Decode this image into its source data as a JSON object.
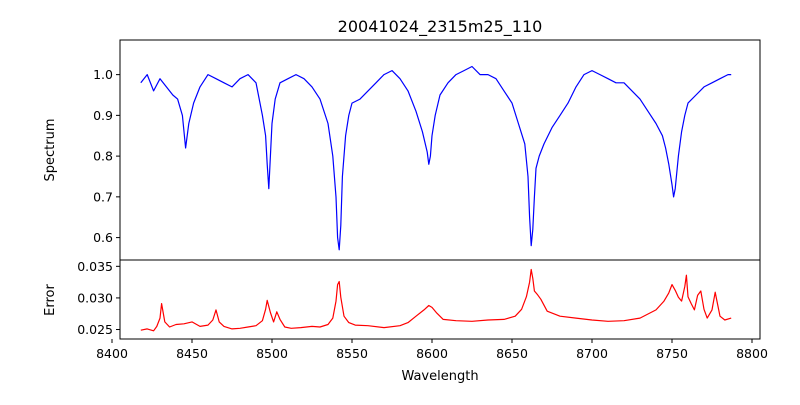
{
  "chart_data": [
    {
      "type": "line",
      "title": "20041024_2315m25_110",
      "xlabel": "",
      "ylabel": "Spectrum",
      "xlim": [
        8405,
        8805
      ],
      "ylim": [
        0.545,
        1.085
      ],
      "xticks": [
        8400,
        8450,
        8500,
        8550,
        8600,
        8650,
        8700,
        8750,
        8800
      ],
      "yticks": [
        0.6,
        0.7,
        0.8,
        0.9,
        1.0
      ],
      "ytick_labels": [
        "0.6",
        "0.7",
        "0.8",
        "0.9",
        "1.0"
      ],
      "grid": false,
      "color": "#0000ff",
      "series": [
        {
          "x": [
            8418,
            8422,
            8426,
            8430,
            8434,
            8438,
            8441,
            8444,
            8446,
            8448,
            8451,
            8455,
            8460,
            8465,
            8470,
            8475,
            8480,
            8485,
            8490,
            8494,
            8496,
            8497,
            8498,
            8499,
            8500,
            8502,
            8505,
            8510,
            8515,
            8520,
            8525,
            8530,
            8535,
            8538,
            8540,
            8541,
            8542,
            8543,
            8544,
            8546,
            8548,
            8550,
            8555,
            8560,
            8565,
            8570,
            8575,
            8580,
            8585,
            8590,
            8594,
            8597,
            8598,
            8599,
            8600,
            8602,
            8605,
            8610,
            8615,
            8620,
            8625,
            8630,
            8635,
            8640,
            8645,
            8650,
            8654,
            8658,
            8660,
            8661,
            8662,
            8663,
            8664,
            8665,
            8667,
            8670,
            8675,
            8680,
            8685,
            8690,
            8695,
            8700,
            8705,
            8710,
            8715,
            8720,
            8725,
            8730,
            8735,
            8740,
            8744,
            8746,
            8748,
            8750,
            8751,
            8752,
            8753,
            8754,
            8756,
            8758,
            8760,
            8765,
            8770,
            8775,
            8780,
            8785,
            8787
          ],
          "y": [
            0.98,
            1.0,
            0.96,
            0.99,
            0.97,
            0.95,
            0.94,
            0.9,
            0.82,
            0.88,
            0.93,
            0.97,
            1.0,
            0.99,
            0.98,
            0.97,
            0.99,
            1.0,
            0.98,
            0.9,
            0.85,
            0.78,
            0.72,
            0.8,
            0.88,
            0.94,
            0.98,
            0.99,
            1.0,
            0.99,
            0.97,
            0.94,
            0.88,
            0.8,
            0.7,
            0.6,
            0.57,
            0.63,
            0.75,
            0.85,
            0.9,
            0.93,
            0.94,
            0.96,
            0.98,
            1.0,
            1.01,
            0.99,
            0.96,
            0.91,
            0.86,
            0.81,
            0.78,
            0.8,
            0.85,
            0.9,
            0.95,
            0.98,
            1.0,
            1.01,
            1.02,
            1.0,
            1.0,
            0.99,
            0.96,
            0.93,
            0.88,
            0.83,
            0.75,
            0.65,
            0.58,
            0.62,
            0.7,
            0.77,
            0.8,
            0.83,
            0.87,
            0.9,
            0.93,
            0.97,
            1.0,
            1.01,
            1.0,
            0.99,
            0.98,
            0.98,
            0.96,
            0.94,
            0.91,
            0.88,
            0.85,
            0.82,
            0.78,
            0.73,
            0.7,
            0.72,
            0.76,
            0.8,
            0.86,
            0.9,
            0.93,
            0.95,
            0.97,
            0.98,
            0.99,
            1.0,
            1.0
          ]
        }
      ]
    },
    {
      "type": "line",
      "title": "",
      "xlabel": "Wavelength",
      "ylabel": "Error",
      "xlim": [
        8405,
        8805
      ],
      "ylim": [
        0.0235,
        0.036
      ],
      "xticks": [
        8400,
        8450,
        8500,
        8550,
        8600,
        8650,
        8700,
        8750,
        8800
      ],
      "xtick_labels": [
        "8400",
        "8450",
        "8500",
        "8550",
        "8600",
        "8650",
        "8700",
        "8750",
        "8800"
      ],
      "yticks": [
        0.025,
        0.03,
        0.035
      ],
      "ytick_labels": [
        "0.025",
        "0.030",
        "0.035"
      ],
      "grid": false,
      "color": "#ff0000",
      "series": [
        {
          "x": [
            8418,
            8422,
            8426,
            8428,
            8430,
            8431,
            8433,
            8436,
            8440,
            8445,
            8450,
            8455,
            8460,
            8463,
            8465,
            8467,
            8470,
            8475,
            8480,
            8485,
            8490,
            8494,
            8496,
            8497,
            8499,
            8501,
            8503,
            8505,
            8508,
            8512,
            8518,
            8525,
            8530,
            8535,
            8538,
            8540,
            8541,
            8542,
            8543,
            8545,
            8548,
            8552,
            8560,
            8570,
            8580,
            8585,
            8590,
            8595,
            8598,
            8600,
            8603,
            8607,
            8615,
            8625,
            8635,
            8645,
            8652,
            8656,
            8659,
            8661,
            8662,
            8663,
            8664,
            8666,
            8668,
            8672,
            8680,
            8690,
            8700,
            8710,
            8720,
            8730,
            8740,
            8745,
            8748,
            8750,
            8752,
            8754,
            8756,
            8758,
            8759,
            8760,
            8762,
            8764,
            8766,
            8768,
            8770,
            8772,
            8775,
            8777,
            8778,
            8780,
            8783,
            8787
          ],
          "y": [
            0.0249,
            0.0251,
            0.0248,
            0.0255,
            0.0268,
            0.0291,
            0.0262,
            0.0254,
            0.0258,
            0.0259,
            0.0262,
            0.0255,
            0.0257,
            0.0265,
            0.0281,
            0.0262,
            0.0255,
            0.0251,
            0.0252,
            0.0254,
            0.0256,
            0.0264,
            0.0282,
            0.0296,
            0.0277,
            0.0262,
            0.0278,
            0.0266,
            0.0254,
            0.0252,
            0.0253,
            0.0255,
            0.0254,
            0.0258,
            0.0268,
            0.0295,
            0.0321,
            0.0326,
            0.0301,
            0.0271,
            0.0261,
            0.0257,
            0.0256,
            0.0253,
            0.0256,
            0.0261,
            0.0271,
            0.0281,
            0.0288,
            0.0285,
            0.0276,
            0.0266,
            0.0264,
            0.0263,
            0.0265,
            0.0266,
            0.0271,
            0.0282,
            0.0302,
            0.0325,
            0.0345,
            0.0331,
            0.0311,
            0.0305,
            0.0298,
            0.0279,
            0.0271,
            0.0268,
            0.0265,
            0.0263,
            0.0264,
            0.0268,
            0.0281,
            0.0295,
            0.0308,
            0.0321,
            0.0312,
            0.0301,
            0.0295,
            0.0318,
            0.0336,
            0.0302,
            0.0291,
            0.0281,
            0.0304,
            0.0311,
            0.0282,
            0.0268,
            0.0281,
            0.0309,
            0.0296,
            0.0271,
            0.0265,
            0.0268
          ]
        }
      ]
    }
  ]
}
